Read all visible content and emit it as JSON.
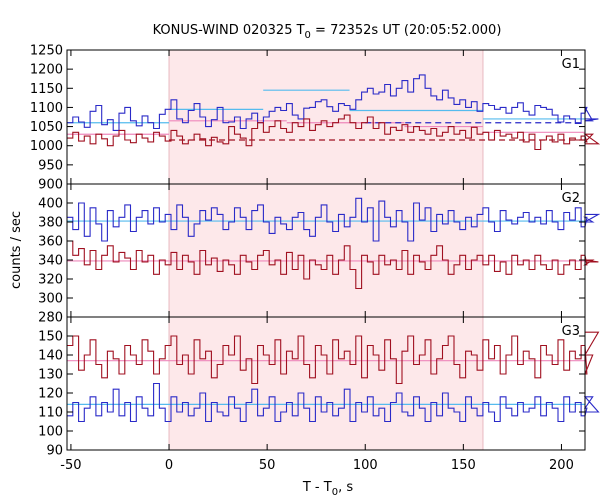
{
  "chart_data": {
    "type": "line",
    "title": "KONUS-WIND 020325 T",
    "title_sub": "0",
    "title_rest": " = 72352s UT (20:05:52.000)",
    "xlabel_main": "T - T",
    "xlabel_sub": "0",
    "xlabel_rest": ", s",
    "ylabel": "counts / sec",
    "xlim": [
      -52,
      212
    ],
    "xticks": [
      -50,
      0,
      50,
      100,
      150,
      200
    ],
    "shaded_interval": [
      0,
      160
    ],
    "shade_color": "#fde8ea",
    "panels": [
      {
        "label": "G1",
        "ylim": [
          900,
          1250
        ],
        "yticks": [
          900,
          950,
          1000,
          1050,
          1100,
          1150,
          1200,
          1250
        ],
        "bin_start": -52,
        "bin_width": 2.944,
        "series": [
          {
            "color": "#2a2ac8",
            "values": [
              1060,
              1075,
              1062,
              1048,
              1090,
              1105,
              1055,
              1068,
              1040,
              1085,
              1100,
              1065,
              1052,
              1078,
              1060,
              1045,
              1082,
              1095,
              1120,
              1070,
              1060,
              1092,
              1110,
              1075,
              1050,
              1068,
              1100,
              1060,
              1062,
              1075,
              1045,
              1070,
              1085,
              1060,
              1075,
              1090,
              1100,
              1092,
              1110,
              1080,
              1070,
              1098,
              1100,
              1115,
              1120,
              1102,
              1090,
              1110,
              1105,
              1095,
              1120,
              1140,
              1150,
              1135,
              1140,
              1160,
              1130,
              1150,
              1170,
              1140,
              1175,
              1185,
              1150,
              1130,
              1120,
              1145,
              1125,
              1108,
              1120,
              1100,
              1115,
              1090,
              1110,
              1105,
              1095,
              1100,
              1085,
              1100,
              1112,
              1090,
              1080,
              1105,
              1100,
              1095,
              1080,
              1062,
              1078,
              1070,
              1058,
              1085,
              1100,
              1065,
              1070
            ]
          },
          {
            "color": "#a01020",
            "values": [
              1020,
              1035,
              1012,
              1025,
              1005,
              1030,
              1018,
              1000,
              1025,
              1040,
              1015,
              1008,
              1030,
              1020,
              1010,
              1035,
              1025,
              1012,
              1040,
              1025,
              1005,
              1015,
              1030,
              1018,
              1000,
              1022,
              1010,
              1005,
              1050,
              1030,
              1020,
              1000,
              1045,
              1060,
              1035,
              1050,
              1065,
              1045,
              1035,
              1060,
              1050,
              1070,
              1040,
              1055,
              1065,
              1050,
              1060,
              1070,
              1080,
              1060,
              1045,
              1060,
              1075,
              1045,
              1060,
              1030,
              1048,
              1040,
              1055,
              1035,
              1050,
              1040,
              1030,
              1045,
              1025,
              1035,
              1050,
              1030,
              1040,
              1020,
              1048,
              1030,
              1035,
              1015,
              1040,
              1025,
              1030,
              1020,
              1035,
              1010,
              1030,
              990,
              1015,
              1025,
              1010,
              1030,
              1005,
              1020,
              1015,
              1025,
              1010,
              1030,
              1005
            ]
          }
        ],
        "levels": [
          {
            "x0": -52,
            "x1": 0,
            "y": 1060,
            "color": "#55bbee",
            "dashed": false
          },
          {
            "x0": 0,
            "x1": 48,
            "y": 1095,
            "color": "#55bbee",
            "dashed": false
          },
          {
            "x0": 48,
            "x1": 92,
            "y": 1145,
            "color": "#55bbee",
            "dashed": false
          },
          {
            "x0": 92,
            "x1": 160,
            "y": 1092,
            "color": "#55bbee",
            "dashed": false
          },
          {
            "x0": 160,
            "x1": 212,
            "y": 1070,
            "color": "#55bbee",
            "dashed": false
          },
          {
            "x0": -52,
            "x1": 0,
            "y": 1030,
            "color": "#ee88bb",
            "dashed": false
          },
          {
            "x0": 0,
            "x1": 60,
            "y": 1065,
            "color": "#ee88bb",
            "dashed": false
          },
          {
            "x0": 60,
            "x1": 120,
            "y": 1060,
            "color": "#ee88bb",
            "dashed": false
          },
          {
            "x0": 120,
            "x1": 160,
            "y": 1050,
            "color": "#ee88bb",
            "dashed": false
          },
          {
            "x0": 160,
            "x1": 212,
            "y": 1035,
            "color": "#ee88bb",
            "dashed": false
          },
          {
            "x0": 0,
            "x1": 212,
            "y": 1015,
            "color": "#a01020",
            "dashed": true
          },
          {
            "x0": 100,
            "x1": 212,
            "y": 1060,
            "color": "#2a2ac8",
            "dashed": true
          }
        ]
      },
      {
        "label": "G2",
        "ylim": [
          280,
          420
        ],
        "yticks": [
          280,
          300,
          320,
          340,
          360,
          380,
          400
        ],
        "bin_start": -52,
        "bin_width": 2.944,
        "series": [
          {
            "color": "#2a2ac8",
            "values": [
              385,
              372,
              400,
              365,
              395,
              378,
              360,
              392,
              375,
              385,
              398,
              370,
              385,
              392,
              378,
              395,
              380,
              388,
              372,
              398,
              385,
              365,
              378,
              392,
              382,
              395,
              388,
              372,
              380,
              395,
              385,
              372,
              392,
              398,
              380,
              368,
              385,
              378,
              372,
              385,
              390,
              372,
              365,
              385,
              398,
              380,
              370,
              388,
              375,
              385,
              405,
              380,
              395,
              360,
              402,
              385,
              375,
              392,
              380,
              360,
              400,
              382,
              395,
              370,
              388,
              378,
              392,
              380,
              372,
              385,
              375,
              388,
              395,
              380,
              370,
              392,
              382,
              378,
              385,
              390,
              380,
              385,
              378,
              392,
              380,
              372,
              390,
              382,
              395,
              375,
              385,
              380,
              388
            ]
          },
          {
            "color": "#a01020",
            "values": [
              360,
              345,
              352,
              335,
              350,
              330,
              345,
              355,
              338,
              348,
              342,
              330,
              350,
              338,
              345,
              325,
              340,
              335,
              348,
              330,
              345,
              338,
              325,
              350,
              335,
              342,
              328,
              340,
              335,
              325,
              345,
              338,
              330,
              345,
              350,
              335,
              340,
              325,
              348,
              330,
              345,
              320,
              340,
              335,
              330,
              345,
              325,
              340,
              355,
              330,
              310,
              345,
              338,
              325,
              345,
              335,
              340,
              330,
              350,
              325,
              345,
              338,
              330,
              345,
              355,
              340,
              325,
              335,
              345,
              330,
              340,
              345,
              335,
              345,
              328,
              338,
              325,
              345,
              335,
              340,
              330,
              345,
              335,
              330,
              340,
              325,
              335,
              340,
              330,
              345,
              335,
              340,
              338
            ]
          }
        ],
        "levels": [
          {
            "x0": -52,
            "x1": 212,
            "y": 381,
            "color": "#55bbee",
            "dashed": false
          },
          {
            "x0": -52,
            "x1": 212,
            "y": 339,
            "color": "#ee88bb",
            "dashed": false
          }
        ]
      },
      {
        "label": "G3",
        "ylim": [
          90,
          160
        ],
        "yticks": [
          90,
          100,
          110,
          120,
          130,
          140,
          150
        ],
        "bin_start": -52,
        "bin_width": 2.944,
        "series": [
          {
            "color": "#a01020",
            "values": [
              145,
              150,
              132,
              140,
              148,
              135,
              128,
              142,
              138,
              130,
              145,
              140,
              135,
              148,
              142,
              130,
              138,
              145,
              150,
              135,
              140,
              130,
              148,
              138,
              142,
              128,
              135,
              145,
              140,
              150,
              132,
              138,
              125,
              145,
              140,
              135,
              148,
              130,
              142,
              138,
              150,
              135,
              128,
              145,
              140,
              130,
              148,
              138,
              142,
              135,
              150,
              128,
              145,
              140,
              132,
              148,
              138,
              125,
              142,
              150,
              135,
              140,
              148,
              130,
              138,
              145,
              150,
              135,
              128,
              142,
              140,
              132,
              148,
              138,
              145,
              130,
              140,
              150,
              135,
              142,
              138,
              128,
              145,
              140,
              135,
              148,
              132,
              142,
              138,
              145,
              130,
              140,
              152
            ]
          },
          {
            "color": "#2a2ac8",
            "values": [
              108,
              115,
              105,
              112,
              118,
              108,
              115,
              110,
              122,
              108,
              115,
              105,
              118,
              112,
              108,
              125,
              112,
              105,
              118,
              110,
              115,
              108,
              112,
              120,
              105,
              115,
              110,
              108,
              118,
              112,
              105,
              115,
              122,
              108,
              112,
              118,
              105,
              110,
              115,
              108,
              120,
              112,
              105,
              118,
              110,
              115,
              108,
              112,
              122,
              105,
              115,
              110,
              118,
              108,
              112,
              105,
              115,
              120,
              110,
              108,
              118,
              112,
              105,
              115,
              108,
              120,
              112,
              110,
              105,
              118,
              112,
              108,
              115,
              110,
              105,
              118,
              112,
              108,
              115,
              110,
              112,
              118,
              108,
              115,
              112,
              105,
              118,
              110,
              115,
              108,
              112,
              118,
              110
            ]
          }
        ],
        "levels": [
          {
            "x0": -52,
            "x1": 212,
            "y": 137,
            "color": "#ee88bb",
            "dashed": false
          },
          {
            "x0": -52,
            "x1": 212,
            "y": 114,
            "color": "#55bbee",
            "dashed": false
          }
        ]
      }
    ]
  }
}
